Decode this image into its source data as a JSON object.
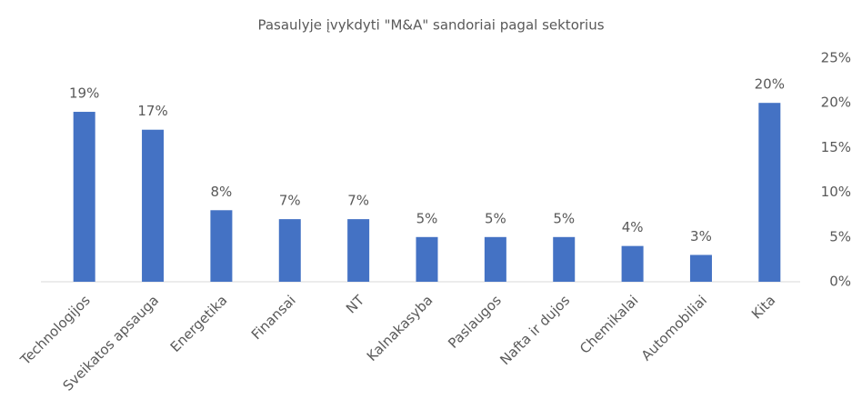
{
  "chart_data": {
    "type": "bar",
    "title": "Pasaulyje įvykdyti \"M&A\" sandoriai pagal sektorius",
    "categories": [
      "Technologijos",
      "Sveikatos apsauga",
      "Energetika",
      "Finansai",
      "NT",
      "Kalnakasyba",
      "Paslaugos",
      "Nafta ir dujos",
      "Chemikalai",
      "Automobiliai",
      "Kita"
    ],
    "values": [
      19,
      17,
      8,
      7,
      7,
      5,
      5,
      5,
      4,
      3,
      20
    ],
    "value_labels": [
      "19%",
      "17%",
      "8%",
      "7%",
      "7%",
      "5%",
      "5%",
      "5%",
      "4%",
      "3%",
      "20%"
    ],
    "color": "#4472c4",
    "ylim": [
      0,
      25
    ],
    "yticks": [
      {
        "value": 0,
        "label": "0%"
      },
      {
        "value": 5,
        "label": "5%"
      },
      {
        "value": 10,
        "label": "10%"
      },
      {
        "value": 15,
        "label": "15%"
      },
      {
        "value": 20,
        "label": "20%"
      },
      {
        "value": 25,
        "label": "25%"
      }
    ],
    "y_axis_side": "right",
    "grid": false
  }
}
